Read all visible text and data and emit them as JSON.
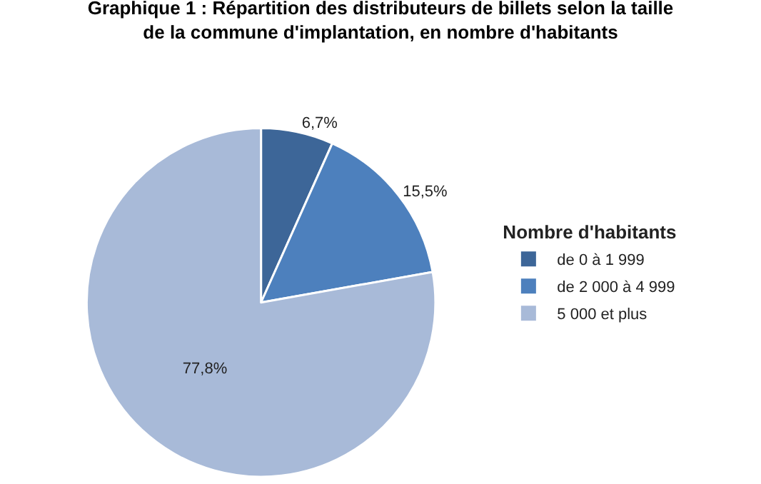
{
  "chart_data": {
    "type": "pie",
    "title": "Graphique 1 : Répartition des distributeurs de billets selon la taille de la commune d'implantation, en nombre d'habitants",
    "legend_title": "Nombre d'habitants",
    "categories": [
      "de 0 à 1 999",
      "de 2 000 à 4 999",
      "5 000 et plus"
    ],
    "values": [
      6.7,
      15.5,
      77.8
    ],
    "value_labels": [
      "6,7%",
      "15,5%",
      "77,8%"
    ],
    "colors": [
      "#3d6698",
      "#4d80bd",
      "#a8bad8"
    ],
    "legend": "right"
  }
}
